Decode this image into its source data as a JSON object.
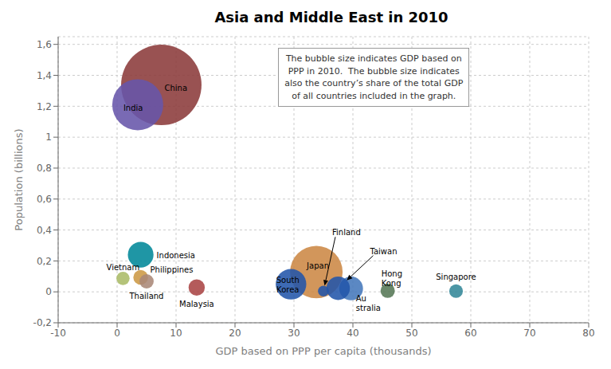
{
  "chart_data": {
    "type": "scatter",
    "title": "Asia and Middle East in 2010",
    "x_label": "GDP based on PPP per capita (thousands)",
    "y_label": "Population (billions)",
    "annotation": "The bubble size indicates GDP based on\nPPP in 2010.  The bubble size indicates\nalso the country’s share of the total GDP\nof all countries included in the graph.",
    "xlim": [
      -10,
      80
    ],
    "ylim": [
      -0.2,
      1.65
    ],
    "xticks": [
      -10,
      0,
      10,
      20,
      30,
      40,
      50,
      60,
      70,
      80
    ],
    "yticks": [
      {
        "value": -0.2,
        "label": "-0,2"
      },
      0,
      {
        "value": 0.2,
        "label": "0,2"
      },
      {
        "value": 0.4,
        "label": "0,4"
      },
      {
        "value": 0.6,
        "label": "0,6"
      },
      {
        "value": 0.8,
        "label": "0,8"
      },
      1,
      {
        "value": 1.2,
        "label": "1,2"
      },
      {
        "value": 1.4,
        "label": "1,4"
      },
      {
        "value": 1.6,
        "label": "1,6"
      }
    ],
    "grid": true,
    "labels": [
      "China",
      "India",
      "Japan",
      "South\nKorea",
      "Au\nstralia",
      "Indonesia",
      "Philippines",
      "Vietnam",
      "Thailand",
      "Malaysia",
      "Hong\nKong",
      "Singapore",
      "Taiwan",
      "Finland"
    ],
    "x": [
      7.5,
      3.5,
      33.8,
      29.5,
      39.7,
      4.0,
      4.0,
      1.0,
      5.0,
      13.5,
      45.9,
      57.5,
      37.5,
      35.0
    ],
    "values": [
      1.338,
      1.21,
      0.128,
      0.049,
      0.022,
      0.24,
      0.094,
      0.087,
      0.068,
      0.028,
      0.007,
      0.005,
      0.023,
      0.005
    ],
    "sizes": [
      10100,
      4060,
      4310,
      1460,
      882,
      1030,
      340,
      276,
      318,
      414,
      321,
      291,
      856,
      185
    ],
    "colors": [
      "#8B3A3A",
      "#6655AA",
      "#CC8844",
      "#2255AA",
      "#4477BB",
      "#008899",
      "#CC9944",
      "#AABB66",
      "#AA8877",
      "#AA4444",
      "#557755",
      "#338899",
      "#2255AA",
      "#2255AA"
    ]
  }
}
